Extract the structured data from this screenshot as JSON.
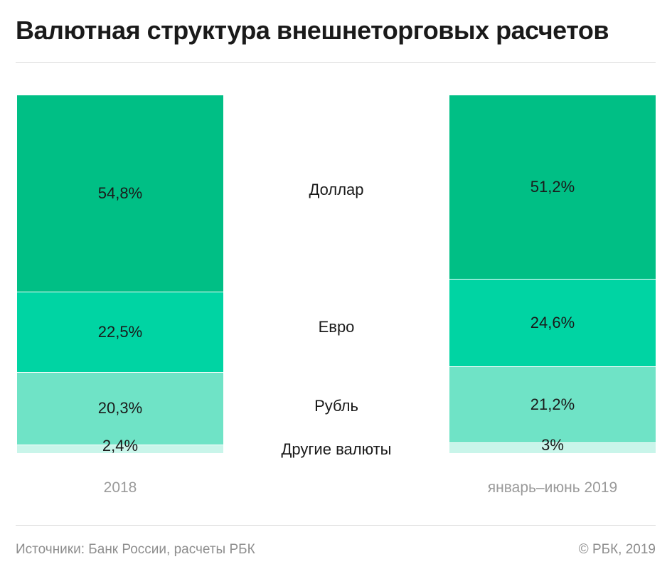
{
  "title": "Валютная структура внешнеторговых расчетов",
  "footer": {
    "source": "Источники: Банк России, расчеты РБК",
    "copyright": "© РБК, 2019"
  },
  "colors": {
    "dollar": "#00bf85",
    "euro": "#00d4a3",
    "ruble": "#6fe3c6",
    "other": "#c9f5ea"
  },
  "chart_data": {
    "type": "bar",
    "stacked": true,
    "categories": [
      "2018",
      "январь–июнь 2019"
    ],
    "series": [
      {
        "name": "Доллар",
        "values": [
          54.8,
          51.2
        ],
        "labels": [
          "54,8%",
          "51,2%"
        ]
      },
      {
        "name": "Евро",
        "values": [
          22.5,
          24.6
        ],
        "labels": [
          "22,5%",
          "24,6%"
        ]
      },
      {
        "name": "Рубль",
        "values": [
          20.3,
          21.2
        ],
        "labels": [
          "20,3%",
          "21,2%"
        ]
      },
      {
        "name": "Другие валюты",
        "values": [
          2.4,
          3
        ],
        "labels": [
          "2,4%",
          "3%"
        ]
      }
    ],
    "ylim": [
      0,
      100
    ]
  }
}
